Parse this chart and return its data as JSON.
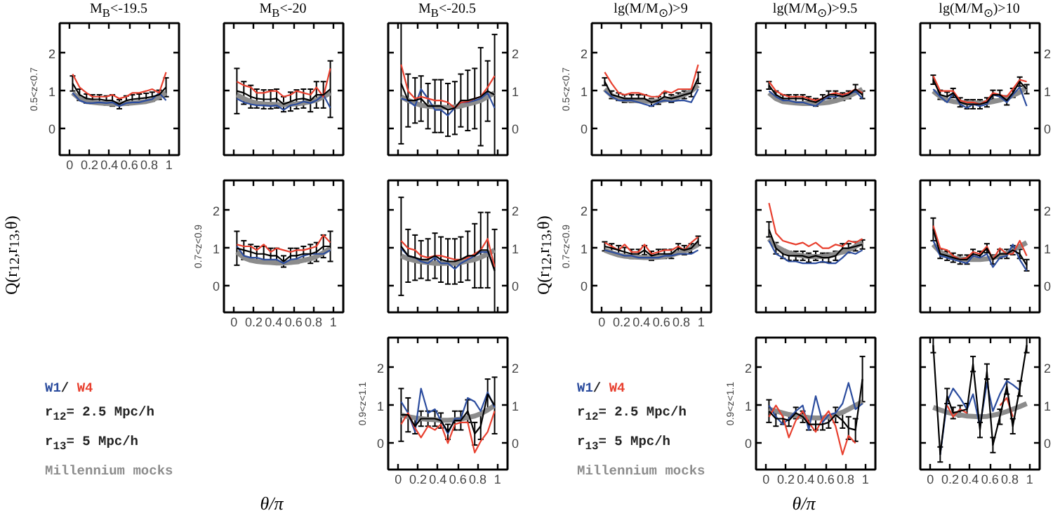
{
  "chart_data": [
    {
      "type": "line",
      "title": "M$_{B}$<-19.5",
      "ylabel": "0.5<z<0.7",
      "x": [
        0.03,
        0.1,
        0.17,
        0.23,
        0.3,
        0.37,
        0.43,
        0.5,
        0.57,
        0.63,
        0.7,
        0.77,
        0.83,
        0.9,
        0.97
      ],
      "xlim": [
        -0.1,
        1.1
      ],
      "ylim": [
        -0.7,
        2.8
      ],
      "xticks": [
        0,
        0.2,
        0.4,
        0.6,
        0.8,
        1
      ],
      "yticks": [
        0,
        1,
        2
      ],
      "series": [
        {
          "color": "#8c8c8c",
          "values": [
            0.95,
            0.8,
            0.72,
            0.7,
            0.68,
            0.67,
            0.66,
            0.66,
            0.67,
            0.68,
            0.7,
            0.72,
            0.76,
            0.85,
            0.95
          ]
        },
        {
          "color": "#2b4c9e",
          "values": [
            0.95,
            0.75,
            0.68,
            0.68,
            0.7,
            0.68,
            0.7,
            0.6,
            0.68,
            0.7,
            0.7,
            0.75,
            0.78,
            0.95,
            0.75
          ]
        },
        {
          "color": "#e8402f",
          "values": [
            1.45,
            1.1,
            0.95,
            0.85,
            0.85,
            0.85,
            0.9,
            0.8,
            0.85,
            0.95,
            0.95,
            1.0,
            1.05,
            0.95,
            1.5
          ]
        },
        {
          "color": "#000000",
          "values": [
            1.2,
            0.9,
            0.8,
            0.78,
            0.78,
            0.75,
            0.75,
            0.65,
            0.75,
            0.78,
            0.8,
            0.82,
            0.85,
            0.9,
            1.1
          ],
          "errors": [
            0.2,
            0.15,
            0.12,
            0.12,
            0.12,
            0.12,
            0.15,
            0.12,
            0.12,
            0.12,
            0.12,
            0.12,
            0.12,
            0.12,
            0.25
          ]
        }
      ]
    },
    {
      "type": "line",
      "title": "M$_{B}$<-20",
      "x": [
        0.03,
        0.1,
        0.17,
        0.23,
        0.3,
        0.37,
        0.43,
        0.5,
        0.57,
        0.63,
        0.7,
        0.77,
        0.83,
        0.9,
        0.97
      ],
      "xlim": [
        -0.1,
        1.1
      ],
      "ylim": [
        -0.7,
        2.8
      ],
      "xticks": [
        0,
        0.2,
        0.4,
        0.6,
        0.8,
        1
      ],
      "yticks": [
        0,
        1,
        2
      ],
      "tick_labels": false,
      "series": [
        {
          "color": "#8c8c8c",
          "values": [
            0.9,
            0.8,
            0.72,
            0.68,
            0.66,
            0.65,
            0.64,
            0.64,
            0.65,
            0.66,
            0.68,
            0.72,
            0.76,
            0.85,
            0.95
          ]
        },
        {
          "color": "#2b4c9e",
          "values": [
            0.8,
            0.7,
            0.65,
            0.62,
            0.62,
            0.6,
            0.62,
            0.5,
            0.62,
            0.65,
            0.72,
            0.68,
            0.75,
            0.9,
            0.55
          ]
        },
        {
          "color": "#e8402f",
          "values": [
            1.25,
            1.15,
            1.1,
            0.95,
            0.95,
            1.0,
            1.0,
            0.85,
            0.9,
            1.0,
            0.95,
            0.9,
            1.1,
            0.85,
            1.6
          ]
        },
        {
          "color": "#000000",
          "values": [
            1.0,
            0.95,
            0.85,
            0.8,
            0.78,
            0.78,
            0.8,
            0.65,
            0.72,
            0.78,
            0.8,
            0.75,
            0.9,
            0.9,
            1.05
          ],
          "errors": [
            0.6,
            0.3,
            0.3,
            0.25,
            0.25,
            0.25,
            0.25,
            0.2,
            0.25,
            0.25,
            0.25,
            0.3,
            0.35,
            0.35,
            0.75
          ]
        }
      ]
    },
    {
      "type": "line",
      "title": "M$_{B}$<-20.5",
      "x": [
        0.03,
        0.1,
        0.17,
        0.23,
        0.3,
        0.37,
        0.43,
        0.5,
        0.57,
        0.63,
        0.7,
        0.77,
        0.83,
        0.9,
        0.97
      ],
      "xlim": [
        -0.1,
        1.1
      ],
      "ylim": [
        -0.7,
        2.8
      ],
      "xticks": [
        0,
        0.2,
        0.4,
        0.6,
        0.8,
        1
      ],
      "yticks": [
        0,
        1,
        2
      ],
      "tick_labels": "y",
      "series": [
        {
          "color": "#8c8c8c",
          "values": [
            0.85,
            0.75,
            0.68,
            0.62,
            0.6,
            0.58,
            0.57,
            0.56,
            0.58,
            0.6,
            0.65,
            0.7,
            0.75,
            0.85,
            0.95
          ]
        },
        {
          "color": "#2b4c9e",
          "values": [
            0.8,
            0.75,
            0.6,
            1.05,
            0.8,
            0.5,
            0.5,
            0.35,
            0.55,
            0.7,
            0.7,
            0.75,
            0.8,
            0.95,
            0.55
          ]
        },
        {
          "color": "#e8402f",
          "values": [
            1.7,
            1.0,
            0.8,
            0.85,
            0.8,
            0.75,
            0.75,
            0.7,
            0.55,
            0.7,
            0.72,
            0.8,
            0.85,
            1.1,
            1.4
          ]
        },
        {
          "color": "#000000",
          "values": [
            1.2,
            0.75,
            0.75,
            0.8,
            0.6,
            0.6,
            0.6,
            0.5,
            0.55,
            0.75,
            0.75,
            0.8,
            0.85,
            1.0,
            0.9
          ],
          "errors": [
            1.6,
            0.7,
            0.6,
            0.6,
            0.6,
            0.7,
            0.7,
            0.7,
            0.7,
            0.7,
            0.8,
            0.8,
            1.3,
            0.8,
            1.6
          ]
        }
      ]
    },
    {
      "type": "line",
      "ylabel": "0.7<z<0.9",
      "x": [
        0.03,
        0.1,
        0.17,
        0.23,
        0.3,
        0.37,
        0.43,
        0.5,
        0.57,
        0.63,
        0.7,
        0.77,
        0.83,
        0.9,
        0.97
      ],
      "xlim": [
        -0.1,
        1.1
      ],
      "ylim": [
        -0.7,
        2.8
      ],
      "xticks": [
        0,
        0.2,
        0.4,
        0.6,
        0.8,
        1
      ],
      "yticks": [
        0,
        1,
        2
      ],
      "series": [
        {
          "color": "#8c8c8c",
          "values": [
            0.9,
            0.75,
            0.68,
            0.65,
            0.63,
            0.62,
            0.61,
            0.61,
            0.62,
            0.64,
            0.68,
            0.72,
            0.78,
            0.88,
            1.0
          ]
        },
        {
          "color": "#2b4c9e",
          "values": [
            1.05,
            0.8,
            0.75,
            0.75,
            0.7,
            0.7,
            0.7,
            0.6,
            0.7,
            0.72,
            0.8,
            0.85,
            0.85,
            0.85,
            0.95
          ]
        },
        {
          "color": "#e8402f",
          "values": [
            1.1,
            1.05,
            1.05,
            0.95,
            1.1,
            0.9,
            1.0,
            0.95,
            0.9,
            0.95,
            0.95,
            1.0,
            1.05,
            1.35,
            1.15
          ]
        },
        {
          "color": "#000000",
          "values": [
            1.0,
            0.95,
            0.9,
            0.85,
            0.85,
            0.8,
            0.8,
            0.65,
            0.8,
            0.8,
            0.85,
            0.85,
            0.9,
            1.05,
            1.05
          ],
          "errors": [
            0.45,
            0.25,
            0.2,
            0.2,
            0.2,
            0.2,
            0.2,
            0.15,
            0.2,
            0.2,
            0.2,
            0.25,
            0.25,
            0.3,
            0.4
          ]
        }
      ]
    },
    {
      "type": "line",
      "x": [
        0.03,
        0.1,
        0.17,
        0.23,
        0.3,
        0.37,
        0.43,
        0.5,
        0.57,
        0.63,
        0.7,
        0.77,
        0.83,
        0.9,
        0.97
      ],
      "xlim": [
        -0.1,
        1.1
      ],
      "ylim": [
        -0.7,
        2.8
      ],
      "xticks": [
        0,
        0.2,
        0.4,
        0.6,
        0.8,
        1
      ],
      "yticks": [
        0,
        1,
        2
      ],
      "tick_labels": "y",
      "series": [
        {
          "color": "#8c8c8c",
          "values": [
            0.8,
            0.72,
            0.67,
            0.64,
            0.62,
            0.6,
            0.6,
            0.6,
            0.6,
            0.62,
            0.66,
            0.7,
            0.76,
            0.85,
            0.95
          ]
        },
        {
          "color": "#2b4c9e",
          "values": [
            1.0,
            0.8,
            0.75,
            0.65,
            0.6,
            0.75,
            0.6,
            0.6,
            0.45,
            0.6,
            0.7,
            0.8,
            0.9,
            0.9,
            0.5
          ]
        },
        {
          "color": "#e8402f",
          "values": [
            1.2,
            1.0,
            0.95,
            0.8,
            0.75,
            0.8,
            0.8,
            0.75,
            0.7,
            0.7,
            0.75,
            0.85,
            0.95,
            1.25,
            0.5
          ]
        },
        {
          "color": "#000000",
          "values": [
            1.05,
            0.8,
            0.75,
            0.7,
            0.7,
            0.8,
            0.7,
            0.65,
            0.65,
            0.7,
            0.8,
            0.8,
            0.95,
            0.95,
            0.4
          ],
          "errors": [
            1.3,
            0.7,
            0.6,
            0.5,
            0.55,
            0.6,
            0.6,
            0.6,
            0.6,
            0.6,
            0.65,
            0.85,
            1.0,
            1.0,
            1.1
          ]
        }
      ]
    },
    {
      "type": "line",
      "ylabel": "0.9<z<1.1",
      "annotations": [
        "/",
        "r$_{12}$= 2.5 Mpc/h",
        "r$_{13}$= 5 Mpc/h"
      ],
      "x": [
        0.03,
        0.1,
        0.17,
        0.23,
        0.3,
        0.37,
        0.43,
        0.5,
        0.57,
        0.63,
        0.7,
        0.77,
        0.83,
        0.9,
        0.97
      ],
      "xlim": [
        -0.1,
        1.1
      ],
      "ylim": [
        -0.7,
        2.8
      ],
      "y2lim": [
        -0.7,
        2.8
      ],
      "xticks": [
        0,
        0.2,
        0.4,
        0.6,
        0.8,
        1
      ],
      "yticks": [
        0,
        1,
        2
      ],
      "y2ticks": [
        0,
        1,
        2
      ],
      "series": [
        {
          "name": "Millennium mocks",
          "color": "#8c8c8c",
          "values": [
            0.75,
            0.7,
            0.67,
            0.65,
            0.63,
            0.62,
            0.61,
            0.61,
            0.62,
            0.64,
            0.68,
            0.72,
            0.78,
            0.88,
            1.0
          ]
        },
        {
          "name": "W1",
          "color": "#2b4c9e",
          "values": [
            1.1,
            0.8,
            0.3,
            1.45,
            0.8,
            0.9,
            0.6,
            0.25,
            0.65,
            0.65,
            1.2,
            1.1,
            0.85,
            1.35,
            0.95
          ]
        },
        {
          "name": "W4",
          "color": "#e8402f",
          "values": [
            0.5,
            0.8,
            0.4,
            0.15,
            0.45,
            0.35,
            0.5,
            0.0,
            0.5,
            0.55,
            0.55,
            -0.25,
            0.05,
            0.3,
            0.85
          ]
        },
        {
          "color": "#000000",
          "values": [
            0.75,
            0.75,
            0.45,
            0.65,
            0.65,
            0.65,
            0.6,
            0.3,
            0.6,
            0.6,
            0.85,
            0.25,
            0.45,
            1.3,
            1.0
          ],
          "errors": [
            0.7,
            0.45,
            0.2,
            0.2,
            0.2,
            0.2,
            0.2,
            0.2,
            0.25,
            0.25,
            0.3,
            0.3,
            0.35,
            0.4,
            0.75
          ]
        }
      ]
    },
    {
      "type": "other",
      "xlabel": "θ/π",
      "ylabel": "Q(r$_{12}$,r$_{13}$,θ)"
    },
    {
      "type": "line",
      "title": "lg(M/M$_{⊙}$)>9",
      "ylabel": "0.5<z<0.7",
      "x": [
        0.03,
        0.1,
        0.17,
        0.23,
        0.3,
        0.37,
        0.43,
        0.5,
        0.57,
        0.63,
        0.7,
        0.77,
        0.83,
        0.9,
        0.97
      ],
      "xlim": [
        -0.1,
        1.1
      ],
      "ylim": [
        -0.7,
        2.8
      ],
      "xticks": [
        0,
        0.2,
        0.4,
        0.6,
        0.8,
        1
      ],
      "yticks": [
        0,
        1,
        2
      ],
      "tick_labels": "y",
      "series": [
        {
          "color": "#8c8c8c",
          "values": [
            1.05,
            0.88,
            0.8,
            0.77,
            0.75,
            0.74,
            0.73,
            0.73,
            0.74,
            0.76,
            0.8,
            0.84,
            0.9,
            1.0,
            1.15
          ]
        },
        {
          "color": "#2b4c9e",
          "values": [
            1.0,
            0.85,
            0.75,
            0.75,
            0.75,
            0.7,
            0.65,
            0.6,
            0.7,
            0.75,
            0.72,
            0.75,
            0.75,
            0.7,
            1.05
          ]
        },
        {
          "color": "#e8402f",
          "values": [
            1.5,
            1.2,
            0.95,
            0.9,
            0.95,
            0.95,
            0.9,
            0.85,
            0.85,
            1.0,
            0.95,
            1.05,
            1.05,
            1.05,
            1.7
          ]
        },
        {
          "color": "#000000",
          "values": [
            1.25,
            0.9,
            0.85,
            0.8,
            0.8,
            0.8,
            0.8,
            0.7,
            0.75,
            0.85,
            0.8,
            0.85,
            0.9,
            0.95,
            1.35
          ],
          "errors": [
            0.1,
            0.1,
            0.1,
            0.1,
            0.1,
            0.1,
            0.1,
            0.1,
            0.1,
            0.1,
            0.1,
            0.1,
            0.1,
            0.1,
            0.15
          ]
        }
      ]
    },
    {
      "type": "line",
      "title": "lg(M/M$_{⊙}$)>9.5",
      "x": [
        0.03,
        0.1,
        0.17,
        0.23,
        0.3,
        0.37,
        0.43,
        0.5,
        0.57,
        0.63,
        0.7,
        0.77,
        0.83,
        0.9,
        0.97
      ],
      "xlim": [
        -0.1,
        1.1
      ],
      "ylim": [
        -0.7,
        2.8
      ],
      "xticks": [
        0,
        0.2,
        0.4,
        0.6,
        0.8,
        1
      ],
      "yticks": [
        0,
        1,
        2
      ],
      "tick_labels": false,
      "series": [
        {
          "color": "#8c8c8c",
          "values": [
            0.95,
            0.8,
            0.72,
            0.7,
            0.68,
            0.67,
            0.67,
            0.67,
            0.68,
            0.7,
            0.74,
            0.8,
            0.86,
            0.95,
            1.05
          ]
        },
        {
          "color": "#2b4c9e",
          "values": [
            1.0,
            0.85,
            0.75,
            0.75,
            0.7,
            0.7,
            0.65,
            0.6,
            0.75,
            0.85,
            0.85,
            0.9,
            0.9,
            1.0,
            0.8
          ]
        },
        {
          "color": "#e8402f",
          "values": [
            1.25,
            1.0,
            0.9,
            0.85,
            0.85,
            0.85,
            0.8,
            0.75,
            0.8,
            0.9,
            0.95,
            0.9,
            0.95,
            1.05,
            0.95
          ]
        },
        {
          "color": "#000000",
          "values": [
            1.15,
            0.9,
            0.8,
            0.8,
            0.8,
            0.8,
            0.75,
            0.7,
            0.8,
            0.9,
            0.9,
            0.85,
            0.9,
            1.05,
            0.9
          ],
          "errors": [
            0.1,
            0.1,
            0.1,
            0.1,
            0.1,
            0.1,
            0.1,
            0.1,
            0.1,
            0.1,
            0.1,
            0.1,
            0.1,
            0.12,
            0.1
          ]
        }
      ]
    },
    {
      "type": "line",
      "title": "lg(M/M$_{⊙}$)>10",
      "x": [
        0.03,
        0.1,
        0.17,
        0.23,
        0.3,
        0.37,
        0.43,
        0.5,
        0.57,
        0.63,
        0.7,
        0.77,
        0.83,
        0.9,
        0.97
      ],
      "xlim": [
        -0.1,
        1.1
      ],
      "ylim": [
        -0.7,
        2.8
      ],
      "xticks": [
        0,
        0.2,
        0.4,
        0.6,
        0.8,
        1
      ],
      "yticks": [
        0,
        1,
        2
      ],
      "tick_labels": "y",
      "series": [
        {
          "color": "#8c8c8c",
          "values": [
            1.0,
            0.85,
            0.76,
            0.72,
            0.7,
            0.68,
            0.68,
            0.68,
            0.69,
            0.72,
            0.76,
            0.82,
            0.88,
            0.97,
            1.1
          ]
        },
        {
          "color": "#2b4c9e",
          "values": [
            1.05,
            0.85,
            0.7,
            0.95,
            0.65,
            0.55,
            0.65,
            0.6,
            0.65,
            0.9,
            0.85,
            0.7,
            0.9,
            1.1,
            0.6
          ]
        },
        {
          "color": "#e8402f",
          "values": [
            1.4,
            1.0,
            1.0,
            1.0,
            0.75,
            0.7,
            0.7,
            0.65,
            0.75,
            0.95,
            0.9,
            0.85,
            1.05,
            1.3,
            1.25
          ]
        },
        {
          "color": "#000000",
          "values": [
            1.3,
            0.9,
            0.85,
            0.95,
            0.7,
            0.65,
            0.65,
            0.65,
            0.7,
            0.9,
            0.9,
            0.75,
            0.95,
            1.25,
            1.05
          ],
          "errors": [
            0.12,
            0.12,
            0.12,
            0.12,
            0.12,
            0.12,
            0.12,
            0.12,
            0.12,
            0.12,
            0.12,
            0.12,
            0.12,
            0.12,
            0.12
          ]
        }
      ]
    },
    {
      "type": "line",
      "ylabel": "0.7<z<0.9",
      "x": [
        0.03,
        0.1,
        0.17,
        0.23,
        0.3,
        0.37,
        0.43,
        0.5,
        0.57,
        0.63,
        0.7,
        0.77,
        0.83,
        0.9,
        0.97
      ],
      "xlim": [
        -0.1,
        1.1
      ],
      "ylim": [
        -0.7,
        2.8
      ],
      "xticks": [
        0,
        0.2,
        0.4,
        0.6,
        0.8,
        1
      ],
      "yticks": [
        0,
        1,
        2
      ],
      "series": [
        {
          "color": "#8c8c8c",
          "values": [
            0.95,
            0.88,
            0.82,
            0.79,
            0.77,
            0.76,
            0.75,
            0.75,
            0.76,
            0.78,
            0.82,
            0.87,
            0.92,
            1.0,
            1.1
          ]
        },
        {
          "color": "#2b4c9e",
          "values": [
            0.95,
            0.9,
            0.85,
            0.8,
            0.8,
            0.75,
            0.75,
            0.75,
            0.75,
            0.8,
            0.8,
            0.85,
            0.85,
            0.85,
            0.95
          ]
        },
        {
          "color": "#e8402f",
          "values": [
            1.15,
            1.05,
            0.95,
            1.1,
            0.9,
            0.9,
            1.1,
            0.85,
            0.9,
            0.95,
            0.95,
            1.05,
            0.95,
            1.15,
            1.3
          ]
        },
        {
          "color": "#000000",
          "values": [
            1.05,
            1.0,
            0.95,
            0.9,
            0.85,
            0.85,
            0.95,
            0.8,
            0.85,
            0.85,
            0.85,
            1.0,
            0.95,
            1.0,
            1.2
          ],
          "errors": [
            0.12,
            0.12,
            0.12,
            0.12,
            0.12,
            0.12,
            0.12,
            0.12,
            0.12,
            0.12,
            0.12,
            0.12,
            0.12,
            0.12,
            0.12
          ]
        }
      ]
    },
    {
      "type": "line",
      "x": [
        0.03,
        0.1,
        0.17,
        0.23,
        0.3,
        0.37,
        0.43,
        0.5,
        0.57,
        0.63,
        0.7,
        0.77,
        0.83,
        0.9,
        0.97
      ],
      "xlim": [
        -0.1,
        1.1
      ],
      "ylim": [
        -0.7,
        2.8
      ],
      "xticks": [
        0,
        0.2,
        0.4,
        0.6,
        0.8,
        1
      ],
      "yticks": [
        0,
        1,
        2
      ],
      "tick_labels": false,
      "series": [
        {
          "color": "#8c8c8c",
          "values": [
            1.25,
            1.05,
            0.95,
            0.88,
            0.83,
            0.8,
            0.78,
            0.78,
            0.78,
            0.8,
            0.85,
            0.9,
            0.95,
            1.05,
            1.15
          ]
        },
        {
          "color": "#2b4c9e",
          "values": [
            1.2,
            0.85,
            0.75,
            0.65,
            0.65,
            0.6,
            0.6,
            0.6,
            0.65,
            0.6,
            0.6,
            0.75,
            0.9,
            0.85,
            0.95
          ]
        },
        {
          "color": "#e8402f",
          "values": [
            2.2,
            1.4,
            1.2,
            1.15,
            1.1,
            1.15,
            1.05,
            1.15,
            1.0,
            1.0,
            1.1,
            1.05,
            1.2,
            1.15,
            1.25
          ]
        },
        {
          "color": "#000000",
          "values": [
            1.5,
            1.0,
            0.85,
            0.8,
            0.8,
            0.8,
            0.75,
            0.8,
            0.75,
            0.75,
            0.8,
            1.0,
            1.0,
            1.05,
            1.1
          ],
          "errors": [
            0.2,
            0.15,
            0.12,
            0.12,
            0.12,
            0.12,
            0.12,
            0.12,
            0.12,
            0.12,
            0.12,
            0.12,
            0.12,
            0.12,
            0.12
          ]
        }
      ]
    },
    {
      "type": "line",
      "x": [
        0.03,
        0.1,
        0.17,
        0.23,
        0.3,
        0.37,
        0.43,
        0.5,
        0.57,
        0.63,
        0.7,
        0.77,
        0.83,
        0.9,
        0.97
      ],
      "xlim": [
        -0.1,
        1.1
      ],
      "ylim": [
        -0.7,
        2.8
      ],
      "xticks": [
        0,
        0.2,
        0.4,
        0.6,
        0.8,
        1
      ],
      "yticks": [
        0,
        1,
        2
      ],
      "tick_labels": "y",
      "series": [
        {
          "color": "#8c8c8c",
          "values": [
            1.1,
            0.9,
            0.8,
            0.75,
            0.72,
            0.7,
            0.7,
            0.7,
            0.72,
            0.75,
            0.8,
            0.87,
            0.95,
            1.05,
            1.15
          ]
        },
        {
          "color": "#2b4c9e",
          "values": [
            1.2,
            0.8,
            0.75,
            0.7,
            0.65,
            0.6,
            0.8,
            0.75,
            0.85,
            0.5,
            0.75,
            0.8,
            1.1,
            0.7,
            0.4
          ]
        },
        {
          "color": "#e8402f",
          "values": [
            1.6,
            1.0,
            0.95,
            0.8,
            0.7,
            0.75,
            0.9,
            0.85,
            1.05,
            0.7,
            1.0,
            0.85,
            0.85,
            1.2,
            0.8
          ]
        },
        {
          "color": "#000000",
          "values": [
            1.5,
            0.85,
            0.8,
            0.75,
            0.7,
            0.7,
            0.85,
            0.8,
            1.0,
            0.7,
            0.85,
            0.85,
            0.95,
            0.85,
            0.55
          ],
          "errors": [
            0.3,
            0.12,
            0.12,
            0.12,
            0.12,
            0.12,
            0.12,
            0.12,
            0.12,
            0.12,
            0.12,
            0.12,
            0.12,
            0.12,
            0.15
          ]
        }
      ]
    },
    {
      "type": "line",
      "ylabel": "0.9<z<1.1",
      "annotations": [
        "/",
        "r$_{12}$= 2.5 Mpc/h",
        "r$_{13}$= 5 Mpc/h"
      ],
      "x": [
        0.03,
        0.1,
        0.17,
        0.23,
        0.3,
        0.37,
        0.43,
        0.5,
        0.57,
        0.63,
        0.7,
        0.77,
        0.83,
        0.9,
        0.97
      ],
      "xlim": [
        -0.1,
        1.1
      ],
      "ylim": [
        -0.7,
        2.8
      ],
      "xticks": [
        0,
        0.2,
        0.4,
        0.6,
        0.8,
        1
      ],
      "yticks": [
        0,
        1,
        2
      ],
      "series": [
        {
          "name": "Millennium mocks",
          "color": "#8c8c8c",
          "values": [
            0.9,
            0.85,
            0.8,
            0.76,
            0.73,
            0.7,
            0.68,
            0.67,
            0.67,
            0.7,
            0.75,
            0.82,
            0.9,
            1.0,
            1.1
          ]
        },
        {
          "name": "W1",
          "color": "#2b4c9e",
          "values": [
            1.0,
            0.7,
            0.5,
            0.65,
            0.85,
            1.0,
            0.35,
            1.25,
            0.55,
            0.75,
            0.8,
            1.05,
            1.6,
            0.9,
            1.05
          ]
        },
        {
          "name": "W4",
          "color": "#e8402f",
          "values": [
            0.7,
            1.0,
            0.7,
            0.15,
            0.6,
            0.85,
            0.55,
            0.3,
            0.65,
            0.85,
            0.45,
            -0.3,
            0.2,
            0.0,
            null
          ]
        },
        {
          "color": "#000000",
          "values": [
            0.85,
            0.65,
            0.65,
            0.6,
            0.8,
            0.7,
            0.5,
            0.5,
            0.5,
            0.55,
            0.75,
            0.6,
            0.4,
            0.35,
            1.7
          ],
          "errors": [
            0.3,
            0.2,
            0.15,
            0.15,
            0.15,
            0.15,
            0.15,
            0.15,
            0.15,
            0.15,
            0.2,
            0.2,
            0.3,
            0.3,
            0.6
          ]
        }
      ]
    },
    {
      "type": "line",
      "x": [
        0.03,
        0.1,
        0.17,
        0.23,
        0.3,
        0.37,
        0.43,
        0.5,
        0.57,
        0.63,
        0.7,
        0.77,
        0.83,
        0.9,
        0.97
      ],
      "xlim": [
        -0.1,
        1.1
      ],
      "ylim": [
        -0.7,
        2.8
      ],
      "xticks": [
        0,
        0.2,
        0.4,
        0.6,
        0.8,
        1
      ],
      "yticks": [
        0,
        1,
        2
      ],
      "series": [
        {
          "color": "#8c8c8c",
          "values": [
            0.95,
            0.88,
            0.82,
            0.78,
            0.75,
            0.72,
            0.71,
            0.7,
            0.71,
            0.74,
            0.78,
            0.84,
            0.9,
            0.97,
            1.05
          ]
        },
        {
          "color": "#2b4c9e",
          "values": [
            null,
            -0.3,
            1.1,
            1.45,
            1.2,
            0.9,
            1.3,
            0.45,
            1.6,
            0.85,
            1.3,
            1.65,
            1.55,
            1.4,
            null
          ]
        },
        {
          "color": "#e8402f",
          "values": [
            null,
            null,
            1.0,
            0.7,
            0.9,
            0.8,
            null,
            null,
            null,
            null,
            1.0,
            1.2,
            0.7,
            null,
            null
          ]
        },
        {
          "color": "#000000",
          "values": [
            2.6,
            -0.3,
            1.25,
            0.8,
            0.85,
            0.9,
            2.1,
            0.35,
            1.9,
            -0.05,
            0.7,
            1.5,
            0.45,
            1.45,
            2.6
          ],
          "errors": [
            0.2,
            0.2,
            0.2,
            0.15,
            0.15,
            0.15,
            0.2,
            0.2,
            0.2,
            0.2,
            0.2,
            0.2,
            0.2,
            0.2,
            0.2
          ]
        }
      ]
    },
    {
      "type": "other",
      "xlabel": "θ/π",
      "ylabel": "Q(r$_{12}$,r$_{13}$,θ)"
    }
  ]
}
